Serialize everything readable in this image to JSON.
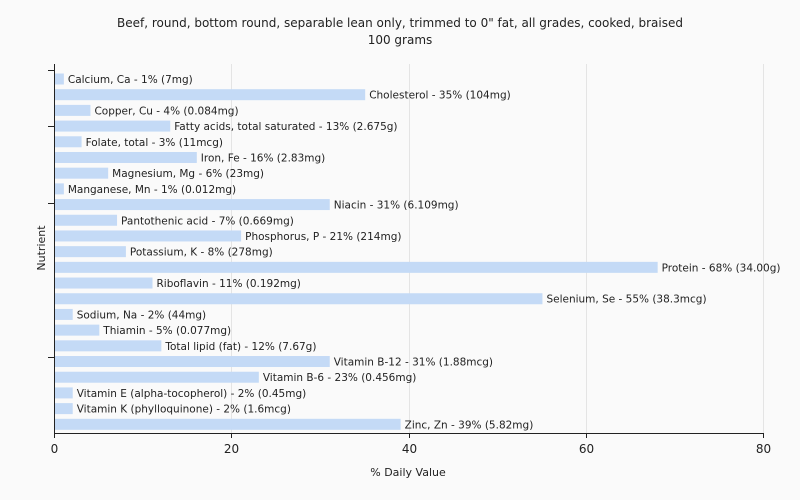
{
  "chart_data": {
    "type": "bar",
    "orientation": "horizontal",
    "title": "Beef, round, bottom round, separable lean only, trimmed to 0\" fat, all grades, cooked, braised",
    "subtitle": "100 grams",
    "xlabel": "% Daily Value",
    "ylabel": "Nutrient",
    "xlim": [
      0,
      80
    ],
    "xticks": [
      0,
      20,
      40,
      60,
      80
    ],
    "grid": true,
    "legend": "none",
    "bar_color": "#c4daf6",
    "categories": [
      "Calcium, Ca",
      "Cholesterol",
      "Copper, Cu",
      "Fatty acids, total saturated",
      "Folate, total",
      "Iron, Fe",
      "Magnesium, Mg",
      "Manganese, Mn",
      "Niacin",
      "Pantothenic acid",
      "Phosphorus, P",
      "Potassium, K",
      "Protein",
      "Riboflavin",
      "Selenium, Se",
      "Sodium, Na",
      "Thiamin",
      "Total lipid (fat)",
      "Vitamin B-12",
      "Vitamin B-6",
      "Vitamin E (alpha-tocopherol)",
      "Vitamin K (phylloquinone)",
      "Zinc, Zn"
    ],
    "values": [
      1,
      35,
      4,
      13,
      3,
      16,
      6,
      1,
      31,
      7,
      21,
      8,
      68,
      11,
      55,
      2,
      5,
      12,
      31,
      23,
      2,
      2,
      39
    ],
    "labels": [
      "Calcium, Ca - 1% (7mg)",
      "Cholesterol - 35% (104mg)",
      "Copper, Cu - 4% (0.084mg)",
      "Fatty acids, total saturated - 13% (2.675g)",
      "Folate, total - 3% (11mcg)",
      "Iron, Fe - 16% (2.83mg)",
      "Magnesium, Mg - 6% (23mg)",
      "Manganese, Mn - 1% (0.012mg)",
      "Niacin - 31% (6.109mg)",
      "Pantothenic acid - 7% (0.669mg)",
      "Phosphorus, P - 21% (214mg)",
      "Potassium, K - 8% (278mg)",
      "Protein - 68% (34.00g)",
      "Riboflavin - 11% (0.192mg)",
      "Selenium, Se - 55% (38.3mcg)",
      "Sodium, Na - 2% (44mg)",
      "Thiamin - 5% (0.077mg)",
      "Total lipid (fat) - 12% (7.67g)",
      "Vitamin B-12 - 31% (1.88mcg)",
      "Vitamin B-6 - 23% (0.456mg)",
      "Vitamin E (alpha-tocopherol) - 2% (0.45mg)",
      "Vitamin K (phylloquinone) - 2% (1.6mcg)",
      "Zinc, Zn - 39% (5.82mg)"
    ]
  }
}
